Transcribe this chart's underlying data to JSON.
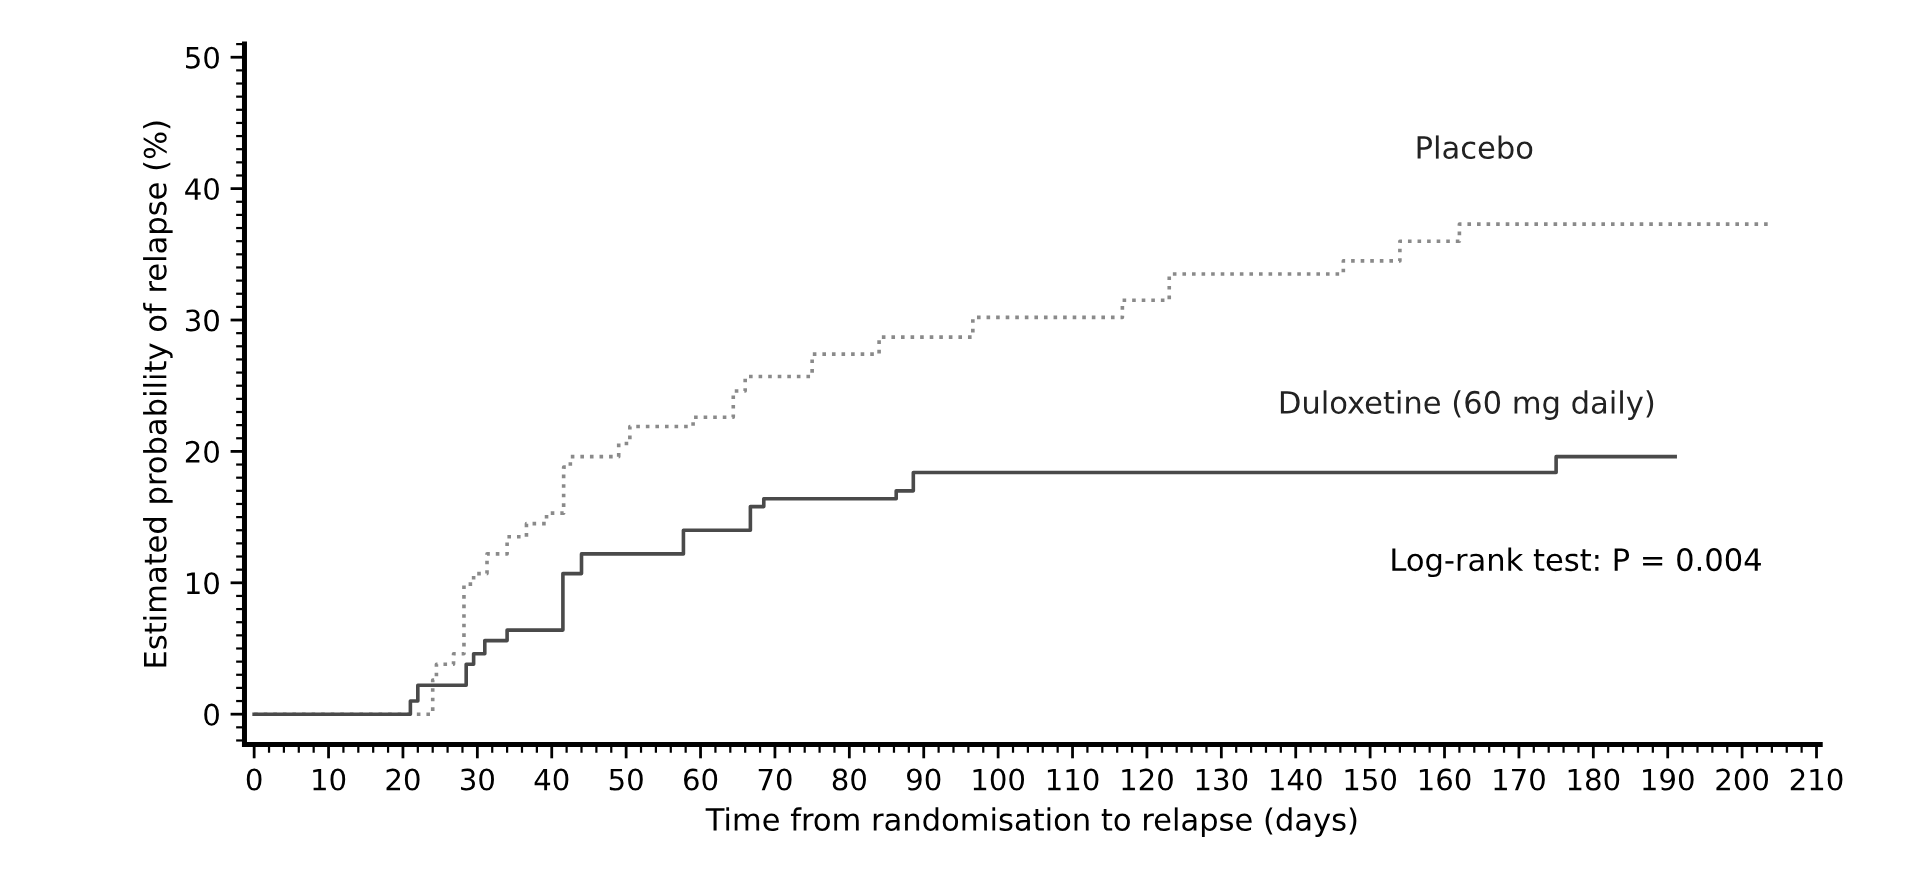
{
  "chart_data": {
    "type": "step",
    "xlabel": "Time from randomisation to relapse (days)",
    "ylabel": "Estimated probability of relapse (%)",
    "series": [
      {
        "name": "Placebo",
        "color": "#8a8a8a",
        "line_style": "dotted",
        "x": [
          0,
          21,
          24,
          24.5,
          26.8,
          28.2,
          29.5,
          31.3,
          34,
          36.6,
          39.3,
          41.6,
          42.5,
          49,
          50.5,
          59,
          64.4,
          66,
          75,
          84,
          96.6,
          116.7,
          123,
          146.4,
          154,
          162,
          204
        ],
        "values": [
          0,
          0,
          2.6,
          3.8,
          4.6,
          9.9,
          10.7,
          12.2,
          13.5,
          14.5,
          15.3,
          18.8,
          19.6,
          20.6,
          21.9,
          22.6,
          24.6,
          25.7,
          27.4,
          28.7,
          30.2,
          31.5,
          33.5,
          34.5,
          36.0,
          37.3,
          37.3
        ]
      },
      {
        "name": "Duloxetine (60 mg daily)",
        "color": "#4a4a4a",
        "line_style": "solid",
        "x": [
          0,
          21,
          22,
          28.5,
          29.5,
          31,
          34,
          41.5,
          44,
          57.7,
          66.7,
          68.5,
          86.3,
          88.6,
          175,
          191
        ],
        "values": [
          0,
          1,
          2.2,
          3.8,
          4.6,
          5.6,
          6.4,
          10.7,
          12.2,
          14.0,
          15.8,
          16.4,
          17.0,
          18.4,
          19.6,
          19.6
        ]
      }
    ],
    "xlim": [
      -1.3,
      210.5
    ],
    "xticks": [
      0,
      10,
      20,
      30,
      40,
      50,
      60,
      70,
      80,
      90,
      100,
      110,
      120,
      130,
      140,
      150,
      160,
      170,
      180,
      190,
      200,
      210
    ],
    "ylim": [
      -2.3,
      51
    ],
    "yticks": [
      0,
      10,
      20,
      30,
      40,
      50
    ],
    "grid": false,
    "legend": false,
    "annotations": [
      "Log-rank test: P = 0.004"
    ]
  }
}
